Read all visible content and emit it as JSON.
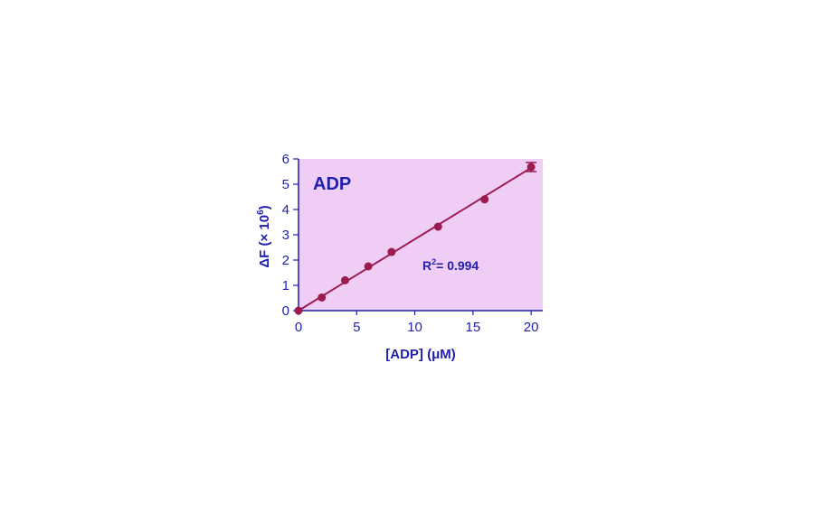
{
  "chart_data": {
    "type": "scatter",
    "title": "ADP",
    "annotation": {
      "base": "R",
      "superscript": "2",
      "rest": "= 0.994"
    },
    "xlabel": "[ADP] (μM)",
    "ylabel": {
      "prefix": "ΔF (× 10",
      "superscript": "6",
      "suffix": ")"
    },
    "xlim": [
      0,
      21
    ],
    "ylim": [
      0,
      6
    ],
    "xticks": [
      0,
      5,
      10,
      15,
      20
    ],
    "yticks": [
      0,
      1,
      2,
      3,
      4,
      5,
      6
    ],
    "grid": false,
    "series": [
      {
        "x": [
          0,
          2,
          4,
          6,
          8,
          12,
          16,
          20
        ],
        "y": [
          0,
          0.52,
          1.2,
          1.75,
          2.32,
          3.32,
          4.4,
          5.68
        ],
        "error": [
          0,
          0,
          0,
          0,
          0,
          0,
          0,
          0.18
        ]
      }
    ],
    "fit_line": {
      "x": [
        0,
        20
      ],
      "y": [
        0,
        5.65
      ]
    },
    "colors": {
      "plot_background": "#efcdf4",
      "axis": "#1f1fae",
      "text": "#1f1fae",
      "data": "#9b1b4f"
    }
  }
}
